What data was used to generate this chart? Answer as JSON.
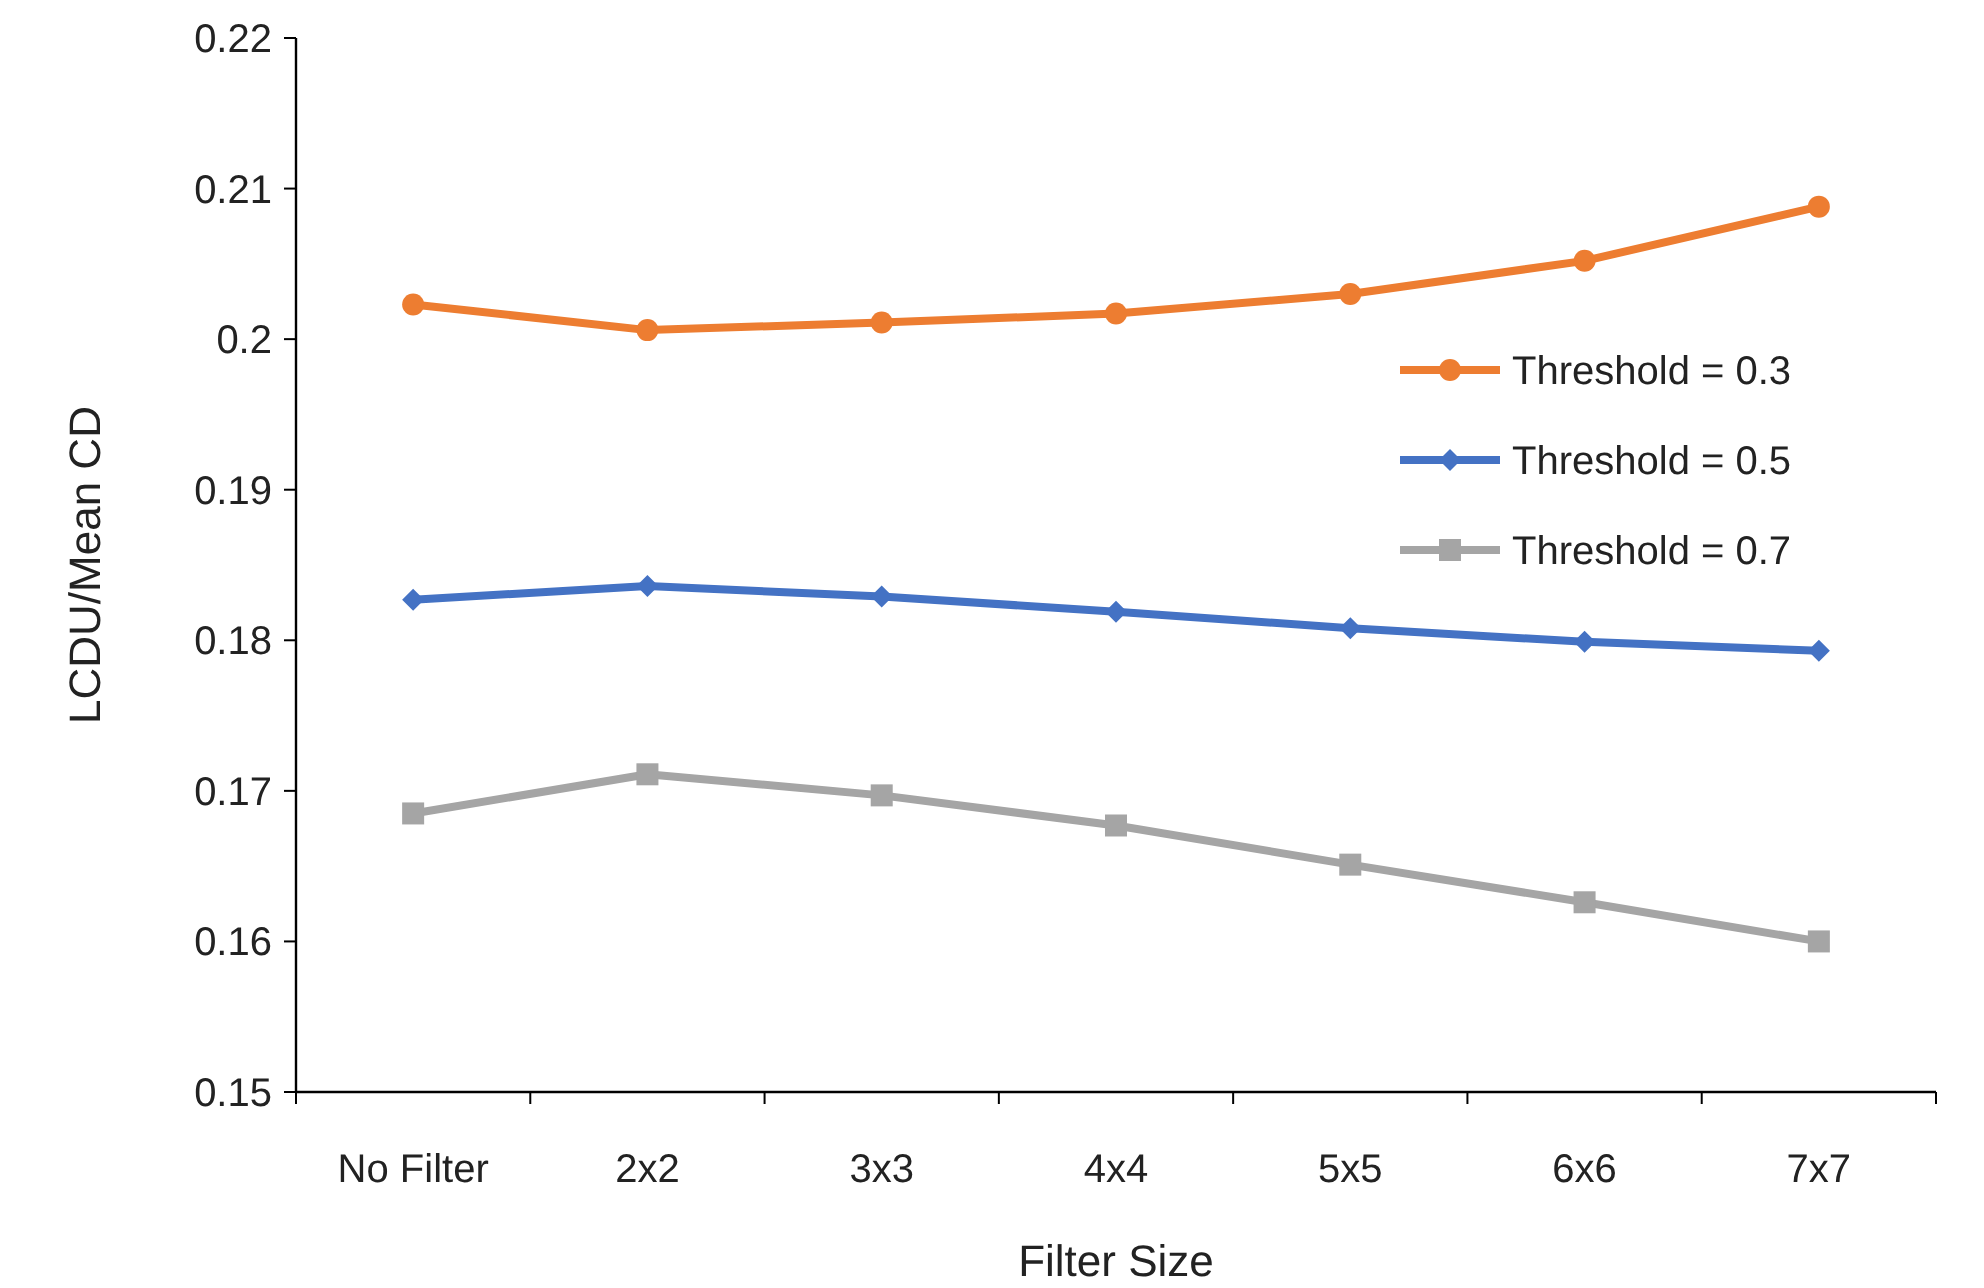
{
  "chart_data": {
    "type": "line",
    "xlabel": "Filter Size",
    "ylabel": "LCDU/Mean CD",
    "categories": [
      "No Filter",
      "2x2",
      "3x3",
      "4x4",
      "5x5",
      "6x6",
      "7x7"
    ],
    "ylim": [
      0.15,
      0.22
    ],
    "yticks": [
      0.15,
      0.16,
      0.17,
      0.18,
      0.19,
      0.2,
      0.21,
      0.22
    ],
    "grid": false,
    "legend": "right",
    "line_style": "solid",
    "series": [
      {
        "name": "Threshold = 0.3",
        "color": "#ed7d31",
        "marker": "circle",
        "values": [
          0.2023,
          0.2006,
          0.2011,
          0.2017,
          0.203,
          0.2052,
          0.2088
        ]
      },
      {
        "name": "Threshold = 0.5",
        "color": "#4472c4",
        "marker": "diamond",
        "values": [
          0.1827,
          0.1836,
          0.1829,
          0.1819,
          0.1808,
          0.1799,
          0.1793
        ]
      },
      {
        "name": "Threshold = 0.7",
        "color": "#a5a5a5",
        "marker": "square",
        "values": [
          0.1685,
          0.1711,
          0.1697,
          0.1677,
          0.1651,
          0.1626,
          0.16
        ]
      }
    ]
  }
}
